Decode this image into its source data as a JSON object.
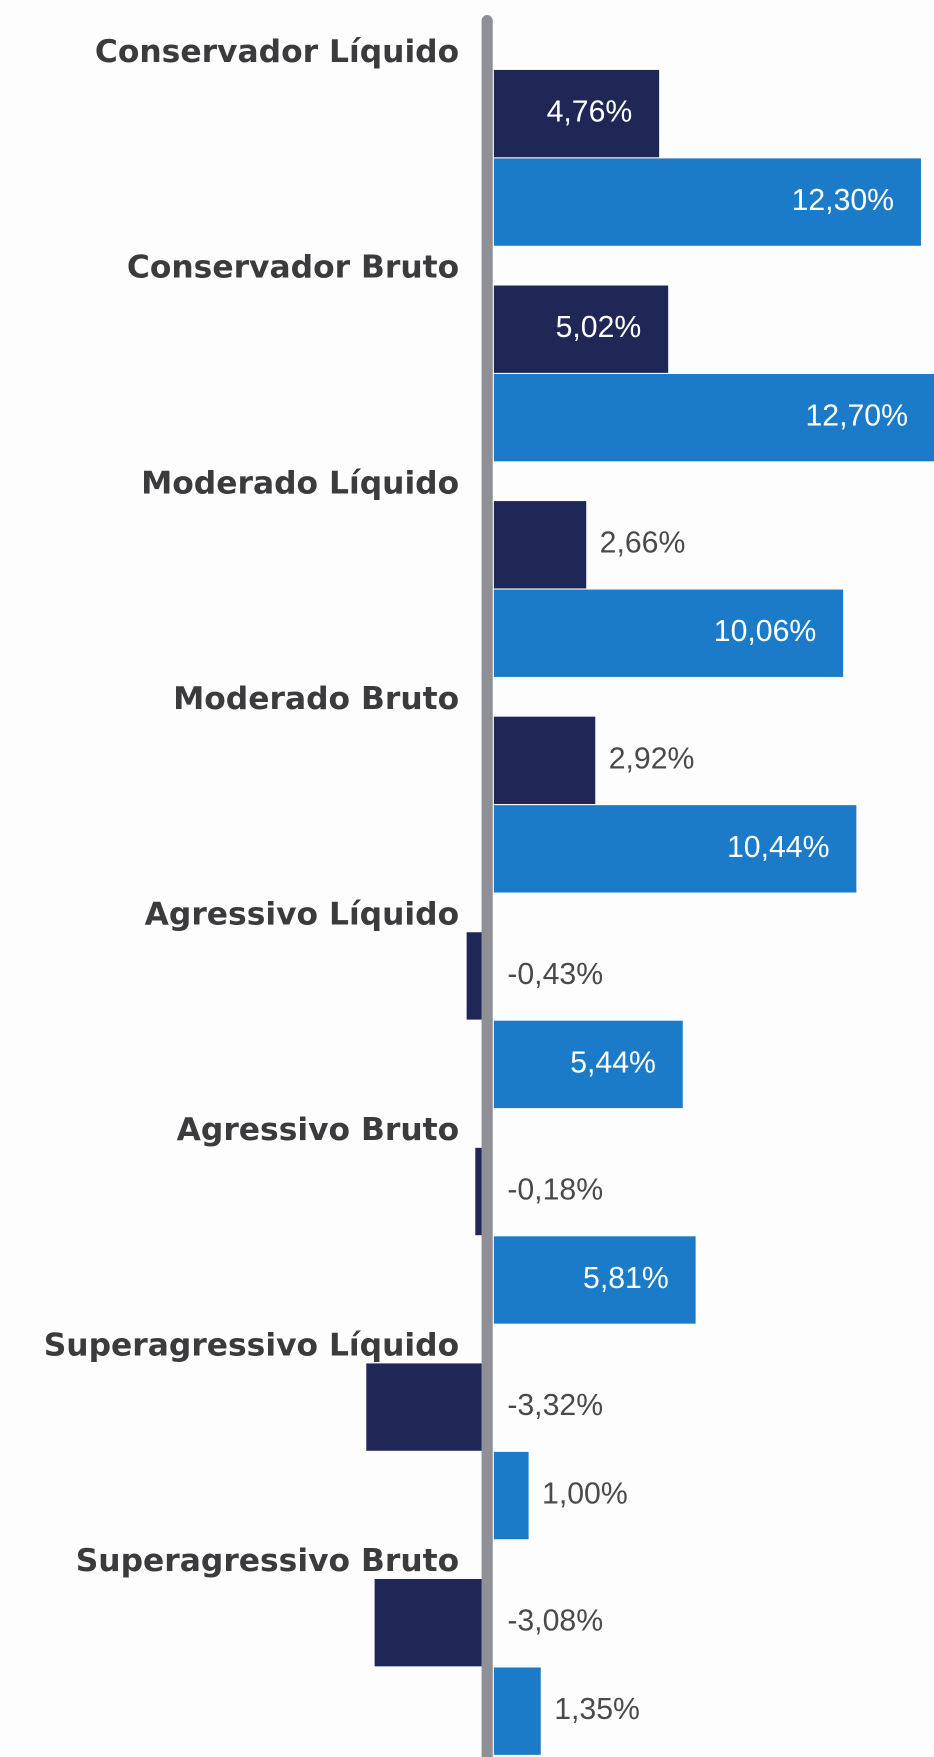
{
  "chart_data": {
    "type": "bar",
    "categories": [
      "Conservador Líquido",
      "Conservador Bruto",
      "Moderado Líquido",
      "Moderado Bruto",
      "Agressivo Líquido",
      "Agressivo Bruto",
      "Superagressivo Líquido",
      "Superagressivo Bruto"
    ],
    "series": [
      {
        "color": "#1e2756",
        "values": [
          4.76,
          5.02,
          2.66,
          2.92,
          -0.43,
          -0.18,
          -3.32,
          -3.08
        ],
        "value_labels": [
          "4,76%",
          "5,02%",
          "2,66%",
          "2,92%",
          "-0,43%",
          "-0,18%",
          "-3,32%",
          "-3,08%"
        ]
      },
      {
        "color": "#1b7bc8",
        "values": [
          12.3,
          12.7,
          10.06,
          10.44,
          5.44,
          5.81,
          1.0,
          1.35
        ],
        "value_labels": [
          "12,30%",
          "12,70%",
          "10,06%",
          "10,44%",
          "5,44%",
          "5,81%",
          "1,00%",
          "1,35%"
        ]
      }
    ],
    "xlim": [
      -14.06,
      12.84
    ]
  }
}
